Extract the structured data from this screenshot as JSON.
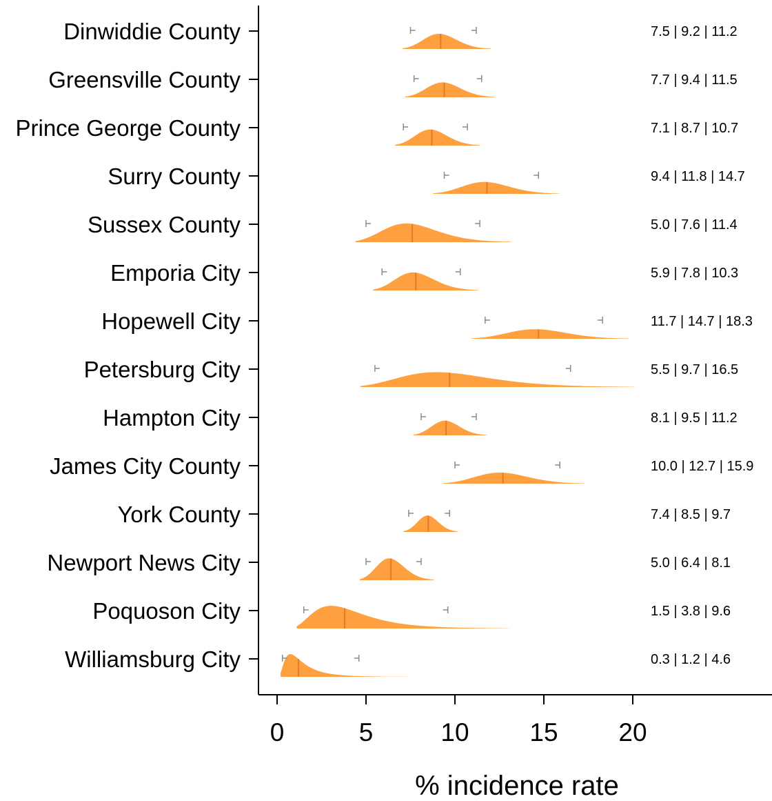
{
  "chart_data": {
    "type": "ridge",
    "xlabel": "% incidence rate",
    "ylabel": "",
    "xlim": [
      0,
      20
    ],
    "xticks": [
      "0",
      "5",
      "10",
      "15",
      "20"
    ],
    "grid": false,
    "color": "#FFA040",
    "median_color": "#E8782A",
    "ci_color": "#8a8a8a",
    "series": [
      {
        "name": "Dinwiddie County",
        "low": 7.5,
        "median": 9.2,
        "high": 11.2,
        "label": "7.5 | 9.2 | 11.2"
      },
      {
        "name": "Greensville County",
        "low": 7.7,
        "median": 9.4,
        "high": 11.5,
        "label": "7.7 | 9.4 | 11.5"
      },
      {
        "name": "Prince George County",
        "low": 7.1,
        "median": 8.7,
        "high": 10.7,
        "label": "7.1 | 8.7 | 10.7"
      },
      {
        "name": "Surry County",
        "low": 9.4,
        "median": 11.8,
        "high": 14.7,
        "label": "9.4 | 11.8 | 14.7"
      },
      {
        "name": "Sussex County",
        "low": 5.0,
        "median": 7.6,
        "high": 11.4,
        "label": "5.0 | 7.6 | 11.4"
      },
      {
        "name": "Emporia City",
        "low": 5.9,
        "median": 7.8,
        "high": 10.3,
        "label": "5.9 | 7.8 | 10.3"
      },
      {
        "name": "Hopewell City",
        "low": 11.7,
        "median": 14.7,
        "high": 18.3,
        "label": "11.7 | 14.7 | 18.3"
      },
      {
        "name": "Petersburg City",
        "low": 5.5,
        "median": 9.7,
        "high": 16.5,
        "label": "5.5 | 9.7 | 16.5"
      },
      {
        "name": "Hampton City",
        "low": 8.1,
        "median": 9.5,
        "high": 11.2,
        "label": "8.1 | 9.5 | 11.2"
      },
      {
        "name": "James City County",
        "low": 10.0,
        "median": 12.7,
        "high": 15.9,
        "label": "10.0 | 12.7 | 15.9"
      },
      {
        "name": "York County",
        "low": 7.4,
        "median": 8.5,
        "high": 9.7,
        "label": "7.4 | 8.5 | 9.7"
      },
      {
        "name": "Newport News City",
        "low": 5.0,
        "median": 6.4,
        "high": 8.1,
        "label": "5.0 | 6.4 | 8.1"
      },
      {
        "name": "Poquoson City",
        "low": 1.5,
        "median": 3.8,
        "high": 9.6,
        "label": "1.5 | 3.8 | 9.6"
      },
      {
        "name": "Williamsburg City",
        "low": 0.3,
        "median": 1.2,
        "high": 4.6,
        "label": "0.3 | 1.2 | 4.6"
      }
    ]
  }
}
